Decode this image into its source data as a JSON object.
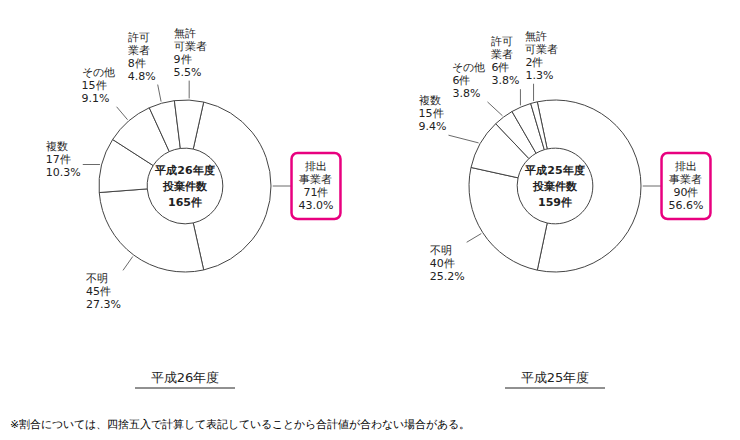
{
  "chart_data": [
    {
      "type": "donut",
      "title": "平成26年度",
      "annotations": [
        "平成26年度",
        "投棄件数",
        "165件"
      ],
      "categories": [
        "排出\n事業者\n71件\n43.0%",
        "不明\n45件\n27.3%",
        "複数\n17件\n10.3%",
        "その他\n15件\n9.1%",
        "許可\n業者\n8件\n4.8%",
        "無許\n可業者\n9件\n5.5%"
      ],
      "values": [
        71,
        45,
        17,
        15,
        8,
        9
      ],
      "color": "#ffffff",
      "highlight": [
        true,
        false,
        false,
        false,
        false,
        false
      ]
    },
    {
      "type": "donut",
      "title": "平成25年度",
      "annotations": [
        "平成25年度",
        "投棄件数",
        "159件"
      ],
      "categories": [
        "排出\n事業者\n90件\n56.6%",
        "不明\n40件\n25.2%",
        "複数\n15件\n9.4%",
        "その他\n6件\n3.8%",
        "許可\n業者\n6件\n3.8%",
        "無許\n可業者\n2件\n1.3%"
      ],
      "values": [
        90,
        40,
        15,
        6,
        6,
        2
      ],
      "color": "#ffffff",
      "highlight": [
        true,
        false,
        false,
        false,
        false,
        false
      ]
    }
  ],
  "footnote": "※割合については、四捨五入で計算して表記していることから合計値が合わない場合がある。"
}
